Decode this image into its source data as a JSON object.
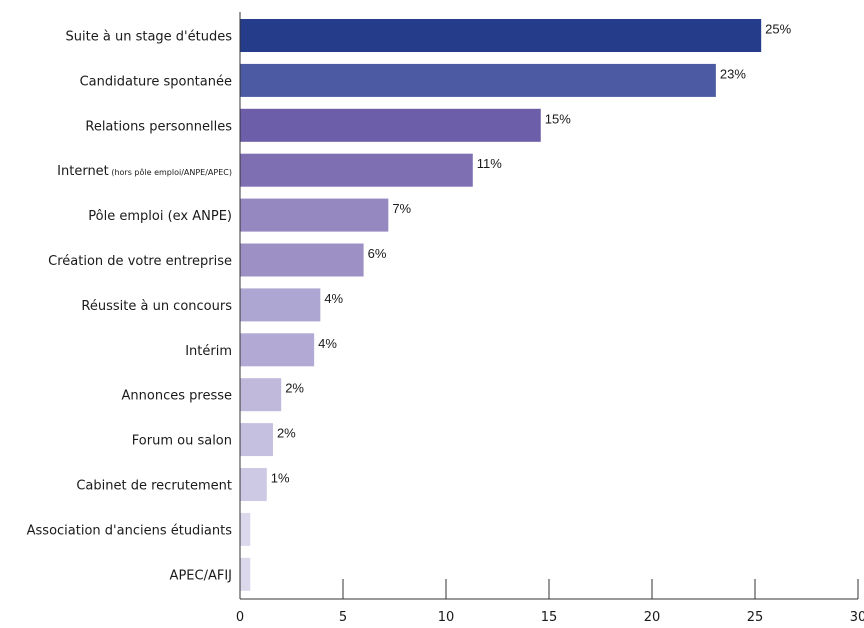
{
  "chart_data": {
    "type": "bar",
    "orientation": "horizontal",
    "title": "",
    "xlabel": "",
    "ylabel": "",
    "xlim": [
      0,
      30
    ],
    "x_ticks": [
      "0",
      "5",
      "10",
      "15",
      "20",
      "25",
      "30"
    ],
    "grid": false,
    "categories": [
      {
        "main": "Suite à un stage d'études",
        "small": ""
      },
      {
        "main": "Candidature spontanée",
        "small": ""
      },
      {
        "main": "Relations personnelles",
        "small": ""
      },
      {
        "main": "Internet",
        "small": "(hors pôle emploi/ANPE/APEC)"
      },
      {
        "main": "Pôle emploi (ex ANPE)",
        "small": ""
      },
      {
        "main": "Création de votre entreprise",
        "small": ""
      },
      {
        "main": "Réussite à un concours",
        "small": ""
      },
      {
        "main": "Intérim",
        "small": ""
      },
      {
        "main": "Annonces presse",
        "small": ""
      },
      {
        "main": "Forum ou salon",
        "small": ""
      },
      {
        "main": "Cabinet de recrutement",
        "small": ""
      },
      {
        "main": "Association d'anciens étudiants",
        "small": ""
      },
      {
        "main": "APEC/AFIJ",
        "small": ""
      }
    ],
    "values": [
      25.3,
      23.1,
      14.6,
      11.3,
      7.2,
      6.0,
      3.9,
      3.6,
      2.0,
      1.6,
      1.3,
      0.5,
      0.5
    ],
    "data_labels": [
      "25%",
      "23%",
      "15%",
      "11%",
      "7%",
      "6%",
      "4%",
      "4%",
      "2%",
      "2%",
      "1%",
      "",
      ""
    ],
    "colors": [
      "#253c8a",
      "#4b5aa2",
      "#6c5ea8",
      "#7e6fb3",
      "#9587c0",
      "#9c90c5",
      "#aea6d2",
      "#b2aad5",
      "#c0b9dc",
      "#c6c0e0",
      "#cdc8e4",
      "#dcd8ec",
      "#dcd8ec"
    ]
  }
}
